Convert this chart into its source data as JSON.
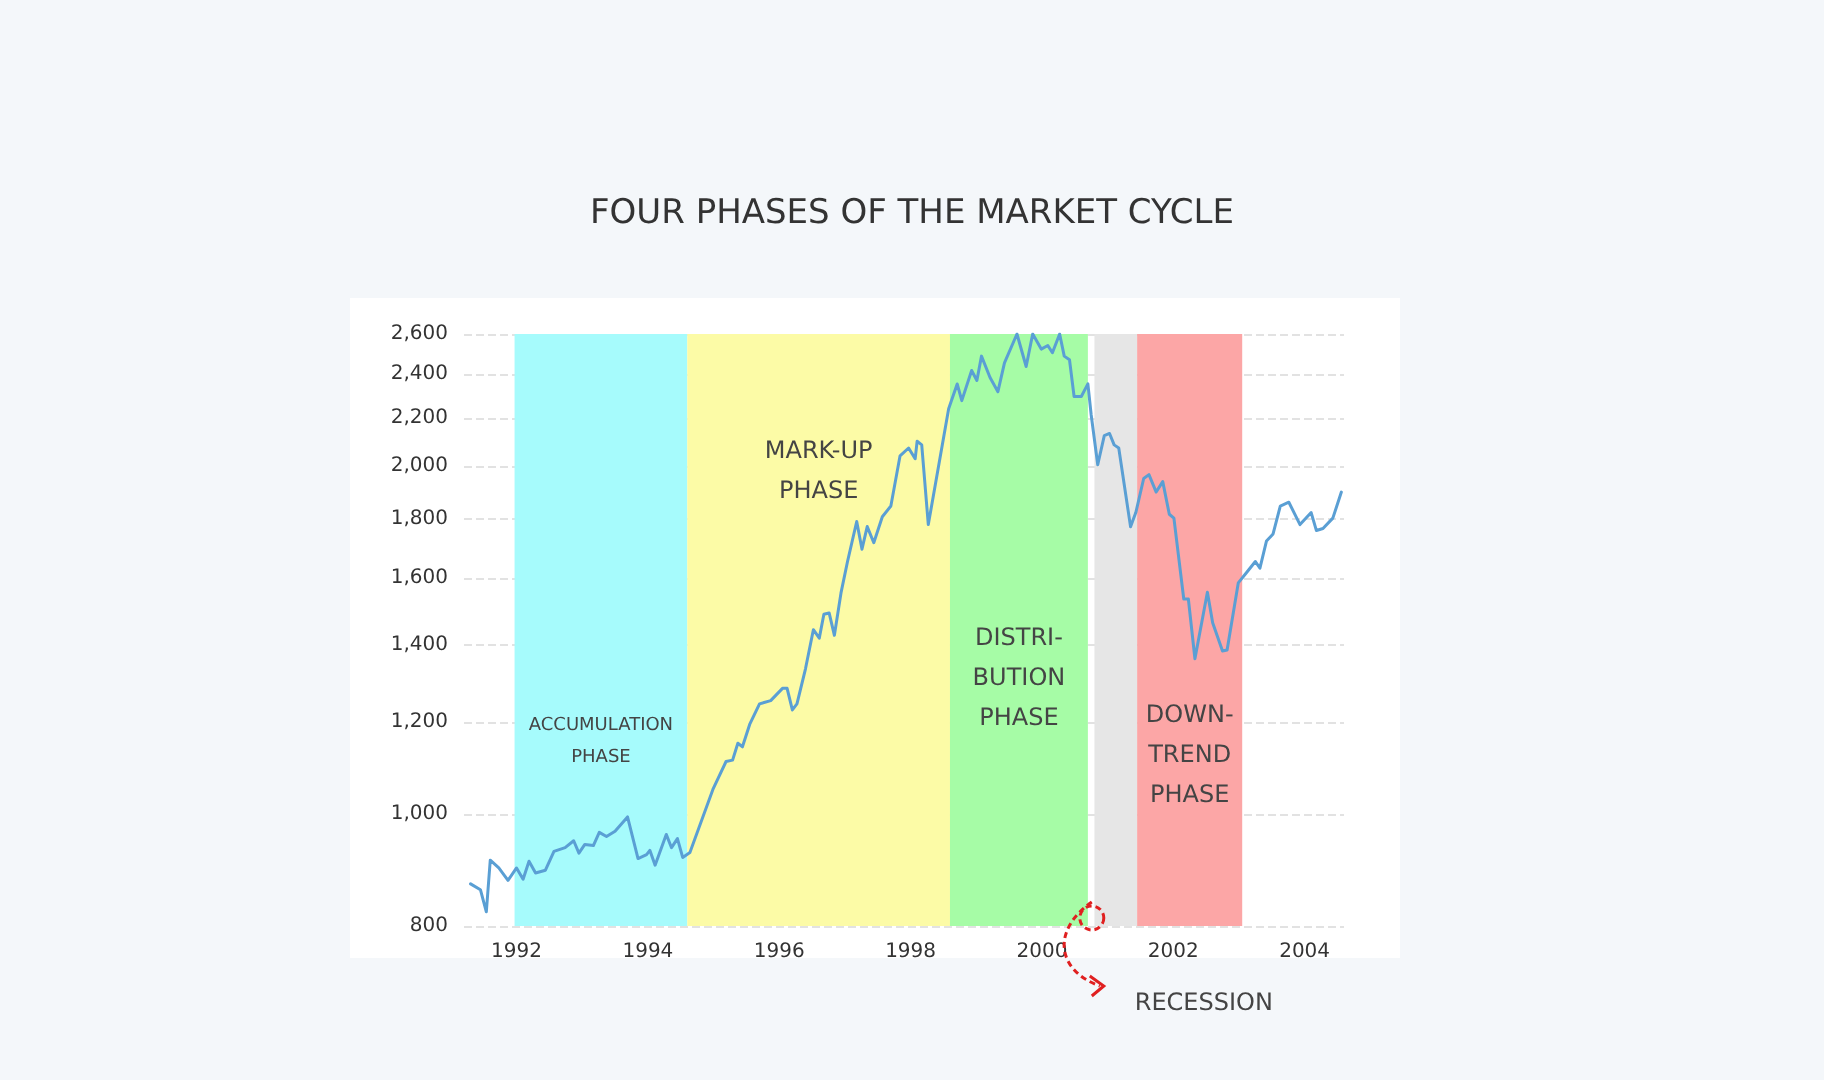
{
  "chart_data": {
    "type": "line",
    "title": "FOUR PHASES OF THE MARKET CYCLE",
    "series": [
      {
        "color": "#5a9fd4",
        "x": [
          1991.3,
          1991.45,
          1991.54,
          1991.6,
          1991.73,
          1991.87,
          1992.0,
          1992.1,
          1992.19,
          1992.29,
          1992.44,
          1992.57,
          1992.74,
          1992.87,
          1992.95,
          1993.04,
          1993.17,
          1993.26,
          1993.37,
          1993.5,
          1993.69,
          1993.85,
          1993.98,
          1994.03,
          1994.11,
          1994.28,
          1994.36,
          1994.45,
          1994.53,
          1994.64,
          1994.99,
          1995.19,
          1995.29,
          1995.37,
          1995.44,
          1995.55,
          1995.7,
          1995.87,
          1996.05,
          1996.12,
          1996.2,
          1996.27,
          1996.4,
          1996.52,
          1996.61,
          1996.68,
          1996.76,
          1996.84,
          1996.94,
          1997.04,
          1997.18,
          1997.26,
          1997.34,
          1997.44,
          1997.57,
          1997.7,
          1997.84,
          1997.97,
          1998.07,
          1998.1,
          1998.17,
          1998.27,
          1998.58,
          1998.71,
          1998.78,
          1998.93,
          1999.01,
          1999.08,
          1999.21,
          1999.33,
          1999.43,
          1999.62,
          1999.76,
          1999.86,
          1999.99,
          2000.09,
          2000.16,
          2000.27,
          2000.34,
          2000.42,
          2000.49,
          2000.6,
          2000.7,
          2000.75,
          2000.85,
          2000.95,
          2001.03,
          2001.1,
          2001.17,
          2001.35,
          2001.43,
          2001.55,
          2001.63,
          2001.74,
          2001.84,
          2001.94,
          2002.01,
          2002.16,
          2002.23,
          2002.33,
          2002.52,
          2002.6,
          2002.75,
          2002.82,
          2002.99,
          2003.12,
          2003.25,
          2003.32,
          2003.42,
          2003.52,
          2003.63,
          2003.76,
          2003.93,
          2004.1,
          2004.18,
          2004.28,
          2004.43,
          2004.56
        ],
        "values": [
          870,
          860,
          823,
          912,
          898,
          876,
          898,
          878,
          910,
          889,
          894,
          928,
          935,
          948,
          925,
          941,
          939,
          964,
          956,
          966,
          994,
          915,
          922,
          930,
          903,
          960,
          935,
          952,
          917,
          926,
          1050,
          1110,
          1113,
          1151,
          1143,
          1195,
          1245,
          1253,
          1284,
          1284,
          1230,
          1245,
          1335,
          1443,
          1419,
          1488,
          1492,
          1427,
          1552,
          1653,
          1790,
          1694,
          1772,
          1716,
          1807,
          1846,
          2040,
          2072,
          2028,
          2100,
          2085,
          1779,
          2240,
          2354,
          2277,
          2418,
          2370,
          2488,
          2384,
          2318,
          2455,
          2600,
          2437,
          2600,
          2523,
          2541,
          2505,
          2600,
          2488,
          2470,
          2296,
          2296,
          2354,
          2214,
          2004,
          2124,
          2133,
          2085,
          2072,
          1771,
          1822,
          1950,
          1965,
          1898,
          1938,
          1816,
          1802,
          1534,
          1534,
          1362,
          1555,
          1463,
          1383,
          1386,
          1584,
          1618,
          1653,
          1631,
          1722,
          1746,
          1846,
          1860,
          1779,
          1822,
          1758,
          1765,
          1802,
          1898
        ]
      }
    ],
    "xlim": [
      1991.2,
      2004.6
    ],
    "xticks": [
      1992,
      1994,
      1996,
      1998,
      2000,
      2002,
      2004
    ],
    "ylim": [
      800,
      2600
    ],
    "log": true,
    "yticks": [
      {
        "value": 800,
        "label": "800"
      },
      {
        "value": 1000,
        "label": "1,000"
      },
      {
        "value": 1200,
        "label": "1,200"
      },
      {
        "value": 1400,
        "label": "1,400"
      },
      {
        "value": 1600,
        "label": "1,600"
      },
      {
        "value": 1800,
        "label": "1,800"
      },
      {
        "value": 2000,
        "label": "2,000"
      },
      {
        "value": 2200,
        "label": "2,200"
      },
      {
        "value": 2400,
        "label": "2,400"
      },
      {
        "value": 2600,
        "label": "2,600"
      }
    ],
    "grid": "y",
    "marker": "none",
    "line_style": "solid",
    "bands": [
      {
        "axis": "x",
        "from": 1991.97,
        "to": 1994.6,
        "label": "ACCUMULATION\nPHASE",
        "color": "#a6fbfc"
      },
      {
        "axis": "x",
        "from": 1994.6,
        "to": 1998.6,
        "label": "MARK-UP\nPHASE",
        "color": "#fcfba6"
      },
      {
        "axis": "x",
        "from": 1998.6,
        "to": 2000.7,
        "label": "DISTRI-\nBUTION\nPHASE",
        "color": "#a6fca6"
      },
      {
        "axis": "x",
        "from": 2000.8,
        "to": 2001.45,
        "label": "RECESSION",
        "color": "#e6e6e6"
      },
      {
        "axis": "x",
        "from": 2001.45,
        "to": 2003.05,
        "label": "DOWN-\nTREND\nPHASE",
        "color": "#fca6a6"
      }
    ]
  }
}
